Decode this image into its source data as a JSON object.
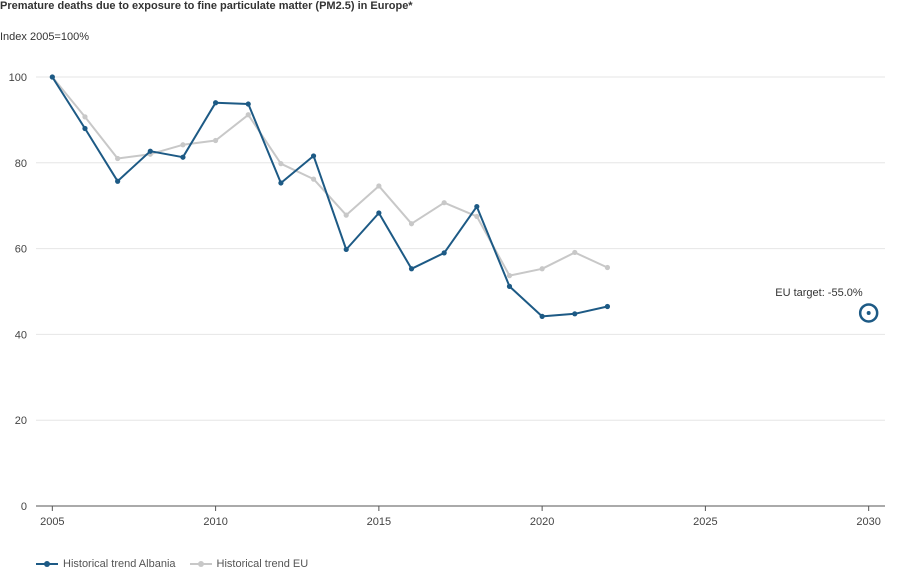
{
  "header": {
    "title": "Premature deaths due to exposure to fine particulate matter (PM2.5) in Europe*",
    "subtitle": "Index 2005=100%"
  },
  "colors": {
    "albania": "#1d5a85",
    "eu": "#c8c8c8",
    "grid": "#e6e6e6",
    "axis": "#555555",
    "target": "#1d5a85"
  },
  "chart_data": {
    "type": "line",
    "title": "Premature deaths due to exposure to fine particulate matter (PM2.5) in Europe*",
    "subtitle": "Index 2005=100%",
    "xlabel": "",
    "ylabel": "",
    "xlim": [
      2004.5,
      2030.5
    ],
    "ylim": [
      0,
      100
    ],
    "x_ticks": [
      2005,
      2010,
      2015,
      2020,
      2025,
      2030
    ],
    "y_ticks": [
      0,
      20,
      40,
      60,
      80,
      100
    ],
    "grid": "horizontal",
    "legend_position": "bottom-left",
    "series": [
      {
        "name": "Historical trend Albania",
        "color": "#1d5a85",
        "x": [
          2005,
          2006,
          2007,
          2008,
          2009,
          2010,
          2011,
          2012,
          2013,
          2014,
          2015,
          2016,
          2017,
          2018,
          2019,
          2020,
          2021,
          2022
        ],
        "y": [
          100,
          88,
          75.7,
          82.7,
          81.3,
          94,
          93.7,
          75.3,
          81.6,
          59.8,
          68.3,
          55.3,
          59,
          69.8,
          51.2,
          44.2,
          44.8,
          46.5
        ]
      },
      {
        "name": "Historical trend EU",
        "color": "#c8c8c8",
        "x": [
          2005,
          2006,
          2007,
          2008,
          2009,
          2010,
          2011,
          2012,
          2013,
          2014,
          2015,
          2016,
          2017,
          2018,
          2019,
          2020,
          2021,
          2022
        ],
        "y": [
          100,
          90.7,
          81,
          82,
          84.2,
          85.2,
          91.2,
          79.8,
          76.2,
          67.8,
          74.6,
          65.8,
          70.7,
          67.5,
          53.7,
          55.3,
          59.1,
          55.6
        ]
      }
    ],
    "annotations": [
      {
        "label": "EU target: -55.0%",
        "x": 2030,
        "y": 45
      }
    ]
  }
}
